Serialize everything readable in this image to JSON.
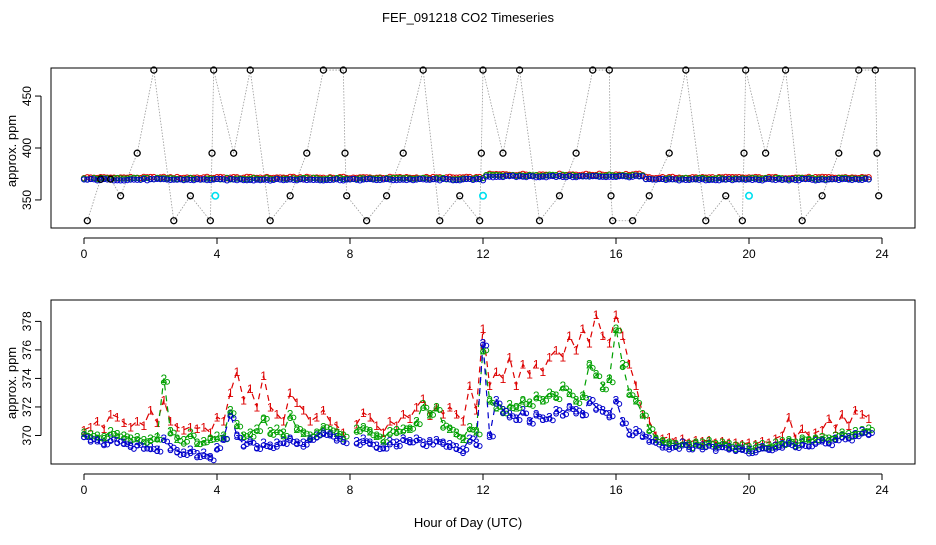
{
  "title": "FEF_091218  CO2 Timeseries",
  "xlabel": "Hour of Day (UTC)",
  "colors": {
    "series1": "#dd0000",
    "series2": "#00a000",
    "series3": "#0000cc",
    "reference": "#000000",
    "highlight": "#00e0f0",
    "connector": "#999999"
  },
  "chart_data": [
    {
      "type": "scatter",
      "panel": "top",
      "ylabel": "approx. ppm",
      "xlim": [
        0,
        24
      ],
      "ylim": [
        323,
        477
      ],
      "xticks": [
        0,
        4,
        8,
        12,
        16,
        20,
        24
      ],
      "yticks": [
        350,
        400,
        450
      ],
      "reference_points": {
        "name": "reference spikes",
        "x": [
          0.1,
          0.5,
          0.8,
          1.1,
          1.6,
          2.1,
          2.7,
          3.2,
          3.8,
          3.85,
          3.9,
          4.5,
          5.0,
          5.6,
          6.2,
          6.7,
          7.2,
          7.8,
          7.85,
          7.9,
          8.5,
          9.1,
          9.6,
          10.2,
          10.7,
          11.3,
          11.9,
          11.95,
          12.0,
          12.6,
          13.1,
          13.7,
          14.3,
          14.8,
          15.3,
          15.8,
          15.85,
          15.9,
          16.5,
          17.0,
          17.6,
          18.1,
          18.7,
          19.3,
          19.8,
          19.85,
          19.9,
          20.5,
          21.1,
          21.6,
          22.2,
          22.7,
          23.3,
          23.8,
          23.85,
          23.9
        ],
        "y": [
          330,
          370,
          370,
          354,
          395,
          475,
          330,
          354,
          330,
          395,
          475,
          395,
          475,
          330,
          354,
          395,
          475,
          475,
          395,
          354,
          330,
          354,
          395,
          475,
          330,
          354,
          330,
          395,
          475,
          395,
          475,
          330,
          354,
          395,
          475,
          475,
          354,
          330,
          330,
          354,
          395,
          475,
          330,
          354,
          330,
          395,
          475,
          395,
          475,
          330,
          354,
          395,
          475,
          475,
          395,
          354
        ]
      },
      "highlight_points": {
        "name": "calibration",
        "x": [
          3.95,
          12.0,
          20.0
        ],
        "y": [
          354,
          354,
          354
        ]
      },
      "series": [
        {
          "name": "1",
          "baseline": 371.5,
          "x_start": 0,
          "x_end": 23.7
        },
        {
          "name": "2",
          "baseline": 370.5,
          "x_start": 0,
          "x_end": 23.7
        },
        {
          "name": "3",
          "baseline": 369.5,
          "x_start": 0,
          "x_end": 23.7
        }
      ]
    },
    {
      "type": "line",
      "panel": "bottom",
      "ylabel": "approx. ppm",
      "xlim": [
        0,
        24
      ],
      "ylim": [
        368,
        379.5
      ],
      "xticks": [
        0,
        4,
        8,
        12,
        16,
        20,
        24
      ],
      "yticks": [
        370,
        372,
        374,
        376,
        378
      ],
      "x": [
        0.0,
        0.2,
        0.4,
        0.6,
        0.8,
        1.0,
        1.2,
        1.4,
        1.6,
        1.8,
        2.0,
        2.2,
        2.4,
        2.6,
        2.8,
        3.0,
        3.2,
        3.4,
        3.6,
        3.8,
        4.0,
        4.2,
        4.4,
        4.6,
        4.8,
        5.0,
        5.2,
        5.4,
        5.6,
        5.8,
        6.0,
        6.2,
        6.4,
        6.6,
        6.8,
        7.0,
        7.2,
        7.4,
        7.6,
        7.8,
        8.0,
        8.2,
        8.4,
        8.6,
        8.8,
        9.0,
        9.2,
        9.4,
        9.6,
        9.8,
        10.0,
        10.2,
        10.4,
        10.6,
        10.8,
        11.0,
        11.2,
        11.4,
        11.6,
        11.8,
        12.0,
        12.2,
        12.4,
        12.6,
        12.8,
        13.0,
        13.2,
        13.4,
        13.6,
        13.8,
        14.0,
        14.2,
        14.4,
        14.6,
        14.8,
        15.0,
        15.2,
        15.4,
        15.6,
        15.8,
        16.0,
        16.2,
        16.4,
        16.6,
        16.8,
        17.0,
        17.2,
        17.4,
        17.6,
        17.8,
        18.0,
        18.2,
        18.4,
        18.6,
        18.8,
        19.0,
        19.2,
        19.4,
        19.6,
        19.8,
        20.0,
        20.2,
        20.4,
        20.6,
        20.8,
        21.0,
        21.2,
        21.4,
        21.6,
        21.8,
        22.0,
        22.2,
        22.4,
        22.6,
        22.8,
        23.0,
        23.2,
        23.4,
        23.6
      ],
      "series": [
        {
          "name": "1",
          "values": [
            370.4,
            370.6,
            371.0,
            370.5,
            371.5,
            371.3,
            370.9,
            370.6,
            371.0,
            370.7,
            371.8,
            370.9,
            372.5,
            371.0,
            370.6,
            370.4,
            370.6,
            370.5,
            370.6,
            370.2,
            371.3,
            371.0,
            373.0,
            374.5,
            372.5,
            373.3,
            372.0,
            374.2,
            372.0,
            371.5,
            371.0,
            373.0,
            372.3,
            371.8,
            371.0,
            371.3,
            371.8,
            371.0,
            370.7,
            370.2,
            null,
            370.8,
            371.6,
            371.3,
            370.7,
            370.2,
            371.0,
            370.7,
            371.5,
            371.2,
            372.0,
            372.6,
            371.4,
            372.0,
            371.5,
            372.0,
            371.5,
            371.0,
            373.5,
            371.8,
            377.5,
            373.5,
            374.5,
            374.0,
            375.5,
            373.5,
            375.0,
            374.3,
            375.0,
            374.5,
            375.5,
            376.0,
            375.5,
            377.0,
            376.0,
            377.5,
            376.5,
            378.5,
            377.0,
            376.5,
            378.5,
            377.0,
            375.0,
            373.5,
            371.5,
            371.0,
            370.0,
            369.8,
            369.9,
            369.6,
            369.8,
            369.5,
            369.7,
            369.6,
            369.7,
            369.5,
            369.6,
            369.5,
            369.5,
            369.4,
            369.5,
            369.4,
            369.6,
            369.5,
            369.8,
            370.0,
            371.3,
            369.8,
            370.5,
            370.0,
            370.2,
            370.4,
            371.2,
            370.5,
            371.5,
            370.7,
            371.8,
            371.5,
            371.2
          ]
        },
        {
          "name": "2",
          "values": [
            370.2,
            370.1,
            370.0,
            369.9,
            370.3,
            370.1,
            370.0,
            369.8,
            369.9,
            369.7,
            369.8,
            369.9,
            374.0,
            370.3,
            369.8,
            369.7,
            370.2,
            369.5,
            369.6,
            369.8,
            370.0,
            370.0,
            371.8,
            370.8,
            370.0,
            370.2,
            370.5,
            371.2,
            370.3,
            370.5,
            370.2,
            371.5,
            370.5,
            370.2,
            370.0,
            370.2,
            370.6,
            370.4,
            370.2,
            370.0,
            null,
            370.5,
            370.6,
            370.3,
            370.0,
            369.8,
            370.3,
            370.4,
            370.5,
            370.5,
            371.0,
            372.2,
            371.5,
            372.0,
            370.8,
            370.5,
            370.2,
            369.8,
            370.6,
            370.3,
            376.0,
            372.5,
            372.0,
            371.8,
            372.2,
            372.0,
            372.5,
            372.3,
            372.8,
            372.5,
            373.0,
            372.8,
            373.5,
            373.0,
            372.5,
            372.8,
            375.0,
            374.3,
            373.5,
            374.0,
            377.5,
            375.0,
            373.0,
            372.5,
            371.5,
            370.5,
            369.8,
            369.6,
            369.5,
            369.4,
            369.5,
            369.4,
            369.5,
            369.5,
            369.6,
            369.4,
            369.5,
            369.4,
            369.3,
            369.3,
            369.2,
            369.3,
            369.4,
            369.3,
            369.5,
            369.6,
            369.7,
            369.5,
            369.8,
            369.7,
            369.8,
            369.9,
            369.8,
            370.0,
            370.2,
            370.1,
            370.3,
            370.4,
            370.5
          ]
        },
        {
          "name": "3",
          "values": [
            370.0,
            369.8,
            369.7,
            369.5,
            369.8,
            369.6,
            369.5,
            369.3,
            369.4,
            369.2,
            369.2,
            369.0,
            369.8,
            369.2,
            368.9,
            368.8,
            369.0,
            368.7,
            368.8,
            368.5,
            369.2,
            369.8,
            371.5,
            370.0,
            369.4,
            369.6,
            369.2,
            369.5,
            369.3,
            369.5,
            369.6,
            369.8,
            369.5,
            369.5,
            369.8,
            370.0,
            370.2,
            370.1,
            369.9,
            369.7,
            null,
            369.6,
            369.8,
            369.5,
            369.3,
            369.2,
            369.6,
            369.5,
            369.8,
            369.6,
            369.8,
            369.5,
            369.6,
            369.7,
            369.5,
            369.4,
            369.2,
            369.0,
            369.8,
            369.5,
            376.5,
            370.0,
            372.5,
            371.8,
            371.5,
            371.2,
            371.8,
            371.0,
            371.5,
            371.2,
            371.3,
            371.8,
            371.5,
            372.0,
            371.8,
            371.5,
            372.5,
            372.0,
            371.8,
            371.5,
            372.5,
            371.0,
            370.2,
            370.4,
            370.0,
            369.8,
            369.6,
            369.4,
            369.3,
            369.3,
            369.5,
            369.3,
            369.4,
            369.3,
            369.4,
            369.2,
            369.3,
            369.2,
            369.1,
            369.1,
            369.0,
            369.1,
            369.2,
            369.1,
            369.3,
            369.4,
            369.5,
            369.3,
            369.5,
            369.4,
            369.6,
            369.7,
            369.6,
            369.8,
            370.0,
            369.9,
            370.1,
            370.3,
            370.2
          ]
        }
      ]
    }
  ]
}
